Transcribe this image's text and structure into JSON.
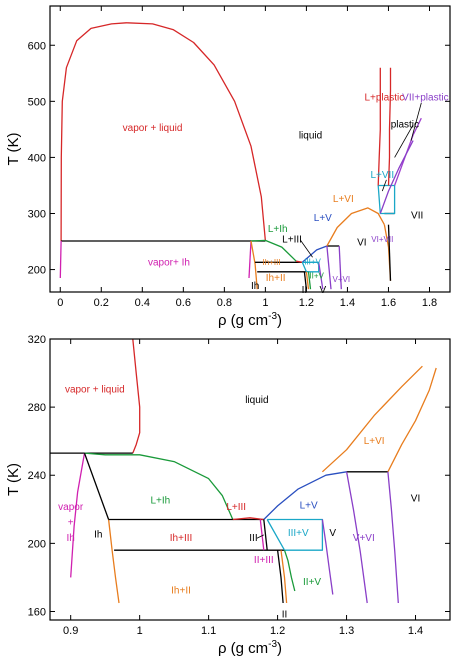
{
  "chart_data": [
    {
      "type": "line",
      "xlabel": "ρ (g cm",
      "xlabel_sup": "-3",
      "xlabel_end": ")",
      "ylabel": "T (K)",
      "xlim": [
        -0.05,
        1.9
      ],
      "ylim": [
        160,
        670
      ],
      "xticks": [
        0,
        0.2,
        0.4,
        0.6,
        0.8,
        1,
        1.2,
        1.4,
        1.6,
        1.8
      ],
      "xtick_labels": [
        "0",
        "0.2",
        "0.4",
        "0.6",
        "0.8",
        "1",
        "1.2",
        "1.4",
        "1.6",
        "1.8"
      ],
      "yticks": [
        200,
        300,
        400,
        500,
        600
      ],
      "ytick_labels": [
        "200",
        "300",
        "400",
        "500",
        "600"
      ],
      "colors": {
        "red": "#d62728",
        "green": "#1a9a3a",
        "orange": "#e87d1e",
        "blue": "#2a4fc0",
        "magenta": "#d020b0",
        "purple": "#8a3fc8",
        "cyan": "#1aa7c7",
        "black": "#000000",
        "violet": "#a040d0"
      },
      "series": [
        {
          "color": "red",
          "x": [
            0.004,
            0.005,
            0.01,
            0.03,
            0.08,
            0.15,
            0.25,
            0.322,
            0.45,
            0.55,
            0.65,
            0.75,
            0.85,
            0.93,
            0.98,
            1.0
          ],
          "y": [
            251,
            400,
            500,
            560,
            608,
            630,
            638,
            640,
            638,
            628,
            605,
            565,
            500,
            420,
            330,
            251
          ]
        },
        {
          "color": "black",
          "x": [
            0.004,
            0.93
          ],
          "y": [
            251,
            251
          ]
        },
        {
          "color": "black",
          "x": [
            0.93,
            1.0
          ],
          "y": [
            251,
            251
          ]
        },
        {
          "color": "magenta",
          "x": [
            0.004,
            0.0
          ],
          "y": [
            251,
            185
          ]
        },
        {
          "color": "magenta",
          "x": [
            0.93,
            0.92
          ],
          "y": [
            251,
            185
          ]
        },
        {
          "color": "green",
          "x": [
            0.93,
            1.0,
            1.08,
            1.15
          ],
          "y": [
            251,
            252,
            240,
            215
          ]
        },
        {
          "color": "orange",
          "x": [
            0.93,
            0.95,
            0.96
          ],
          "y": [
            251,
            210,
            165
          ]
        },
        {
          "color": "black",
          "x": [
            0.95,
            1.18
          ],
          "y": [
            213,
            213
          ]
        },
        {
          "color": "black",
          "x": [
            0.96,
            1.21
          ],
          "y": [
            196,
            196
          ]
        },
        {
          "color": "red",
          "x": [
            1.15,
            1.18
          ],
          "y": [
            215,
            213
          ]
        },
        {
          "color": "blue",
          "x": [
            1.18,
            1.25,
            1.3
          ],
          "y": [
            213,
            235,
            242
          ]
        },
        {
          "color": "black",
          "x": [
            1.3,
            1.36
          ],
          "y": [
            242,
            242
          ]
        },
        {
          "color": "orange",
          "x": [
            1.3,
            1.35,
            1.42,
            1.5,
            1.55,
            1.58
          ],
          "y": [
            242,
            275,
            300,
            310,
            300,
            280
          ]
        },
        {
          "color": "black",
          "x": [
            1.58,
            1.63
          ],
          "y": [
            300,
            300
          ]
        },
        {
          "color": "cyan",
          "x": [
            1.18,
            1.26,
            1.26,
            1.2,
            1.18
          ],
          "y": [
            213,
            213,
            196,
            196,
            213
          ]
        },
        {
          "color": "purple",
          "x": [
            1.26,
            1.28
          ],
          "y": [
            213,
            165
          ]
        },
        {
          "color": "purple",
          "x": [
            1.3,
            1.32
          ],
          "y": [
            242,
            165
          ]
        },
        {
          "color": "purple",
          "x": [
            1.36,
            1.37
          ],
          "y": [
            242,
            165
          ]
        },
        {
          "color": "green",
          "x": [
            1.21,
            1.22
          ],
          "y": [
            196,
            165
          ]
        },
        {
          "color": "orange",
          "x": [
            1.2,
            1.21
          ],
          "y": [
            196,
            165
          ]
        },
        {
          "color": "black",
          "x": [
            1.19,
            1.2
          ],
          "y": [
            196,
            165
          ]
        },
        {
          "color": "cyan",
          "x": [
            1.55,
            1.63,
            1.63,
            1.56,
            1.55
          ],
          "y": [
            350,
            350,
            300,
            300,
            350
          ]
        },
        {
          "color": "red",
          "x": [
            1.55,
            1.555,
            1.56,
            1.56,
            1.56
          ],
          "y": [
            350,
            400,
            450,
            520,
            560
          ]
        },
        {
          "color": "red",
          "x": [
            1.6,
            1.605,
            1.605,
            1.61,
            1.61
          ],
          "y": [
            350,
            400,
            450,
            520,
            560
          ]
        },
        {
          "color": "violet",
          "x": [
            1.63,
            1.68,
            1.72,
            1.76
          ],
          "y": [
            350,
            400,
            440,
            470
          ]
        },
        {
          "color": "purple",
          "x": [
            1.56,
            1.6,
            1.65,
            1.72
          ],
          "y": [
            300,
            340,
            380,
            430
          ]
        },
        {
          "color": "orange",
          "x": [
            1.58,
            1.6,
            1.61
          ],
          "y": [
            280,
            240,
            180
          ]
        },
        {
          "color": "black",
          "x": [
            1.6,
            1.61
          ],
          "y": [
            280,
            180
          ]
        }
      ],
      "labels": [
        {
          "text": "vapor + liquid",
          "x": 0.45,
          "y": 452,
          "color": "red",
          "size": "normal"
        },
        {
          "text": "liquid",
          "x": 1.22,
          "y": 438,
          "color": "black",
          "size": "normal"
        },
        {
          "text": "vapor+ Ih",
          "x": 0.53,
          "y": 212,
          "color": "magenta",
          "size": "normal"
        },
        {
          "text": "L+Ih",
          "x": 1.06,
          "y": 272,
          "color": "green",
          "size": "normal"
        },
        {
          "text": "L+III",
          "x": 1.13,
          "y": 253,
          "color": "black",
          "size": "normal"
        },
        {
          "text": "L+V",
          "x": 1.28,
          "y": 291,
          "color": "blue",
          "size": "normal"
        },
        {
          "text": "L+VI",
          "x": 1.38,
          "y": 325,
          "color": "orange",
          "size": "normal"
        },
        {
          "text": "L+VII",
          "x": 1.57,
          "y": 368,
          "color": "cyan",
          "size": "normal"
        },
        {
          "text": "L+plastic",
          "x": 1.58,
          "y": 506,
          "color": "red",
          "size": "normal"
        },
        {
          "text": "VII+plastic",
          "x": 1.78,
          "y": 506,
          "color": "purple",
          "size": "normal"
        },
        {
          "text": "plastic",
          "x": 1.68,
          "y": 458,
          "color": "black",
          "size": "normal"
        },
        {
          "text": "VII",
          "x": 1.74,
          "y": 296,
          "color": "black",
          "size": "normal"
        },
        {
          "text": "VI",
          "x": 1.47,
          "y": 248,
          "color": "black",
          "size": "normal"
        },
        {
          "text": "VI+VII",
          "x": 1.57,
          "y": 253,
          "color": "purple",
          "size": "small"
        },
        {
          "text": "Ih+III",
          "x": 1.03,
          "y": 212,
          "color": "orange",
          "size": "small"
        },
        {
          "text": "Ih+II",
          "x": 1.05,
          "y": 184,
          "color": "orange",
          "size": "normal"
        },
        {
          "text": "III+V",
          "x": 1.23,
          "y": 213,
          "color": "cyan",
          "size": "small"
        },
        {
          "text": "II+V",
          "x": 1.25,
          "y": 188,
          "color": "green",
          "size": "small"
        },
        {
          "text": "V+VI",
          "x": 1.37,
          "y": 182,
          "color": "purple",
          "size": "small"
        },
        {
          "text": "Ih",
          "x": 0.95,
          "y": 170,
          "color": "black",
          "size": "normal"
        },
        {
          "text": "II",
          "x": 1.19,
          "y": 163,
          "color": "black",
          "size": "normal"
        },
        {
          "text": "V",
          "x": 1.28,
          "y": 163,
          "color": "black",
          "size": "normal"
        }
      ],
      "pointers": [
        {
          "x1": 1.17,
          "y1": 253,
          "x2": 1.23,
          "y2": 222
        },
        {
          "x1": 1.72,
          "y1": 458,
          "x2": 1.63,
          "y2": 400
        },
        {
          "x1": 1.76,
          "y1": 497,
          "x2": 1.71,
          "y2": 430
        },
        {
          "x1": 1.59,
          "y1": 360,
          "x2": 1.57,
          "y2": 340
        }
      ]
    },
    {
      "type": "line",
      "xlabel": "ρ (g cm",
      "xlabel_sup": "-3",
      "xlabel_end": ")",
      "ylabel": "T (K)",
      "xlim": [
        0.87,
        1.45
      ],
      "ylim": [
        155,
        320
      ],
      "xticks": [
        0.9,
        1,
        1.1,
        1.2,
        1.3,
        1.4
      ],
      "xtick_labels": [
        "0.9",
        "1",
        "1.1",
        "1.2",
        "1.3",
        "1.4"
      ],
      "yticks": [
        160,
        200,
        240,
        280,
        320
      ],
      "ytick_labels": [
        "160",
        "200",
        "240",
        "280",
        "320"
      ],
      "series": [
        {
          "color": "red",
          "x": [
            0.99,
            0.995,
            1.0,
            1.0,
            0.995,
            0.99
          ],
          "y": [
            320,
            300,
            280,
            265,
            258,
            253
          ]
        },
        {
          "color": "black",
          "x": [
            0.87,
            0.99
          ],
          "y": [
            253,
            253
          ]
        },
        {
          "color": "magenta",
          "x": [
            0.92,
            0.91,
            0.905,
            0.9
          ],
          "y": [
            253,
            230,
            210,
            180
          ]
        },
        {
          "color": "green",
          "x": [
            0.92,
            0.95,
            1.0,
            1.05,
            1.1,
            1.12,
            1.135
          ],
          "y": [
            253,
            252,
            252,
            248,
            238,
            228,
            214
          ]
        },
        {
          "color": "black",
          "x": [
            0.92,
            0.955
          ],
          "y": [
            253,
            214
          ]
        },
        {
          "color": "orange",
          "x": [
            0.955,
            0.96,
            0.965,
            0.97
          ],
          "y": [
            214,
            196,
            180,
            165
          ]
        },
        {
          "color": "black",
          "x": [
            0.955,
            1.18
          ],
          "y": [
            214,
            214
          ]
        },
        {
          "color": "black",
          "x": [
            0.963,
            1.21
          ],
          "y": [
            196,
            196
          ]
        },
        {
          "color": "red",
          "x": [
            1.135,
            1.16,
            1.18
          ],
          "y": [
            214,
            215,
            214
          ]
        },
        {
          "color": "blue",
          "x": [
            1.18,
            1.2,
            1.23,
            1.27,
            1.3
          ],
          "y": [
            214,
            222,
            232,
            240,
            242
          ]
        },
        {
          "color": "black",
          "x": [
            1.3,
            1.36
          ],
          "y": [
            242,
            242
          ]
        },
        {
          "color": "orange",
          "x": [
            1.265,
            1.3,
            1.34,
            1.38,
            1.41
          ],
          "y": [
            242,
            255,
            275,
            292,
            304
          ]
        },
        {
          "color": "orange",
          "x": [
            1.36,
            1.38,
            1.4,
            1.42,
            1.43
          ],
          "y": [
            242,
            258,
            272,
            290,
            303
          ]
        },
        {
          "color": "black",
          "x": [
            1.18,
            1.185
          ],
          "y": [
            214,
            196
          ]
        },
        {
          "color": "magenta",
          "x": [
            1.175,
            1.18
          ],
          "y": [
            214,
            196
          ]
        },
        {
          "color": "cyan",
          "x": [
            1.185,
            1.265,
            1.265,
            1.21,
            1.185
          ],
          "y": [
            214,
            214,
            196,
            196,
            214
          ]
        },
        {
          "color": "purple",
          "x": [
            1.265,
            1.27,
            1.275,
            1.28
          ],
          "y": [
            214,
            200,
            185,
            170
          ]
        },
        {
          "color": "purple",
          "x": [
            1.3,
            1.31,
            1.32,
            1.33
          ],
          "y": [
            242,
            220,
            195,
            165
          ]
        },
        {
          "color": "purple",
          "x": [
            1.36,
            1.365,
            1.37,
            1.375
          ],
          "y": [
            242,
            220,
            195,
            165
          ]
        },
        {
          "color": "green",
          "x": [
            1.21,
            1.215,
            1.22,
            1.225
          ],
          "y": [
            196,
            190,
            180,
            172
          ]
        },
        {
          "color": "orange",
          "x": [
            1.205,
            1.21,
            1.213
          ],
          "y": [
            196,
            180,
            165
          ]
        },
        {
          "color": "black",
          "x": [
            1.2,
            1.205,
            1.208
          ],
          "y": [
            196,
            180,
            165
          ]
        }
      ],
      "labels": [
        {
          "text": "vapor + liquid",
          "x": 0.935,
          "y": 290,
          "color": "red",
          "size": "normal"
        },
        {
          "text": "liquid",
          "x": 1.17,
          "y": 284,
          "color": "black",
          "size": "normal"
        },
        {
          "text": "L+Ih",
          "x": 1.03,
          "y": 225,
          "color": "green",
          "size": "normal"
        },
        {
          "text": "L+III",
          "x": 1.14,
          "y": 221,
          "color": "red",
          "size": "normal"
        },
        {
          "text": "L+V",
          "x": 1.245,
          "y": 222,
          "color": "blue",
          "size": "normal"
        },
        {
          "text": "L+VI",
          "x": 1.34,
          "y": 260,
          "color": "orange",
          "size": "normal"
        },
        {
          "text": "VI",
          "x": 1.4,
          "y": 226,
          "color": "black",
          "size": "normal"
        },
        {
          "text": "vapor",
          "x": 0.9,
          "y": 221,
          "color": "magenta",
          "size": "normal"
        },
        {
          "text": "+",
          "x": 0.9,
          "y": 212,
          "color": "magenta",
          "size": "normal"
        },
        {
          "text": "Ih",
          "x": 0.9,
          "y": 203,
          "color": "magenta",
          "size": "normal"
        },
        {
          "text": "Ih",
          "x": 0.94,
          "y": 205,
          "color": "black",
          "size": "normal"
        },
        {
          "text": "Ih+III",
          "x": 1.06,
          "y": 203,
          "color": "red",
          "size": "normal"
        },
        {
          "text": "III",
          "x": 1.165,
          "y": 203,
          "color": "black",
          "size": "normal"
        },
        {
          "text": "III+V",
          "x": 1.23,
          "y": 206,
          "color": "cyan",
          "size": "normal"
        },
        {
          "text": "V",
          "x": 1.28,
          "y": 206,
          "color": "black",
          "size": "normal"
        },
        {
          "text": "V+VI",
          "x": 1.325,
          "y": 203,
          "color": "purple",
          "size": "normal"
        },
        {
          "text": "Ih+II",
          "x": 1.06,
          "y": 172,
          "color": "orange",
          "size": "normal"
        },
        {
          "text": "II+III",
          "x": 1.18,
          "y": 190,
          "color": "magenta",
          "size": "normal"
        },
        {
          "text": "II+V",
          "x": 1.25,
          "y": 177,
          "color": "green",
          "size": "normal"
        },
        {
          "text": "II",
          "x": 1.21,
          "y": 158,
          "color": "black",
          "size": "normal"
        }
      ],
      "pointers": [
        {
          "x1": 1.17,
          "y1": 203,
          "x2": 1.18,
          "y2": 205
        }
      ]
    }
  ]
}
